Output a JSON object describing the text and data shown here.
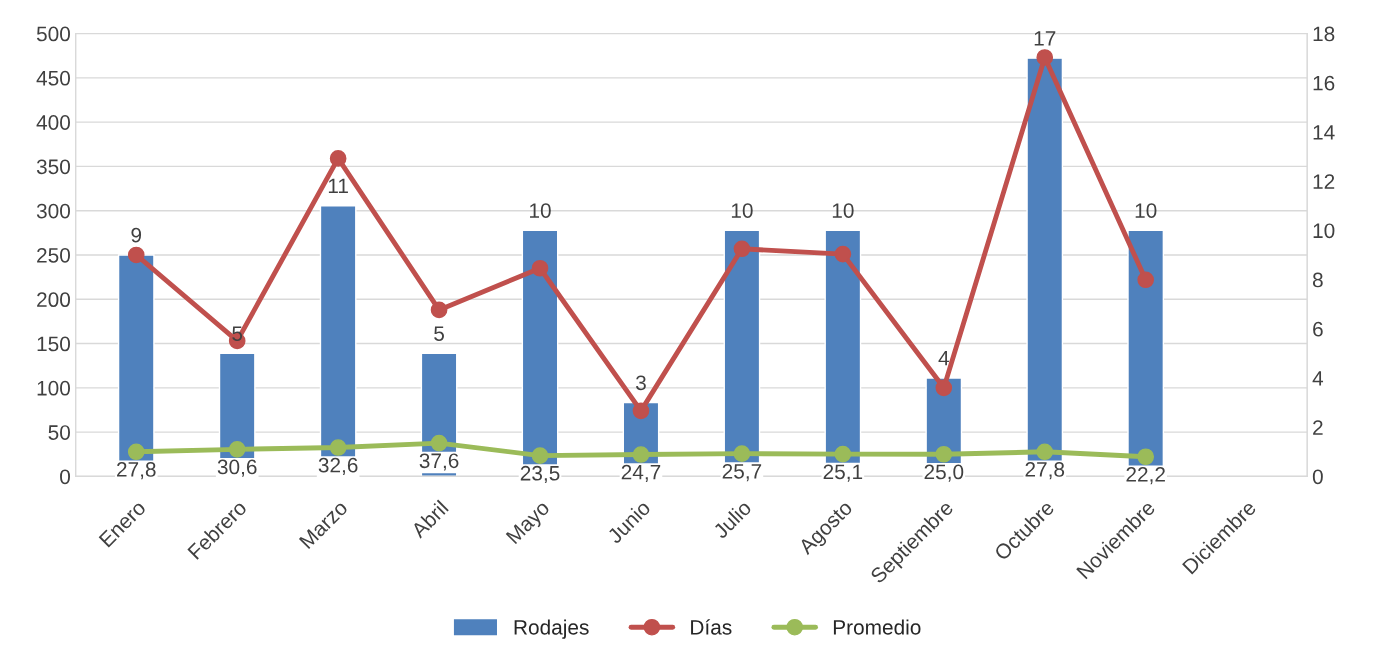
{
  "chart_data": {
    "type": "bar",
    "categories": [
      "Enero",
      "Febrero",
      "Marzo",
      "Abril",
      "Mayo",
      "Junio",
      "Julio",
      "Agosto",
      "Septiembre",
      "Octubre",
      "Noviembre",
      "Diciembre"
    ],
    "series": [
      {
        "name": "Rodajes",
        "axis": "y2",
        "color": "#4f81bd",
        "values": [
          9,
          5,
          11,
          5,
          10,
          3,
          10,
          10,
          4,
          17,
          10,
          null
        ],
        "value_labels": [
          "9",
          "5",
          "11",
          "5",
          "10",
          "3",
          "10",
          "10",
          "4",
          "17",
          "10",
          null
        ]
      },
      {
        "name": "Días",
        "type": "line",
        "color": "#c0504d",
        "values": [
          250,
          153,
          359,
          188,
          235,
          74,
          257,
          251,
          100,
          473,
          222,
          null
        ]
      },
      {
        "name": "Promedio",
        "type": "line",
        "color": "#9bbb59",
        "values": [
          27.8,
          30.6,
          32.6,
          37.6,
          23.5,
          24.7,
          25.7,
          25.1,
          25.0,
          27.8,
          22.2,
          null
        ],
        "value_labels": [
          "27,8",
          "30,6",
          "32,6",
          "37,6",
          "23,5",
          "24,7",
          "25,7",
          "25,1",
          "25,0",
          "27,8",
          "22,2",
          null
        ]
      }
    ],
    "ylim": [
      0,
      500
    ],
    "yticks": [
      0,
      50,
      100,
      150,
      200,
      250,
      300,
      350,
      400,
      450,
      500
    ],
    "y2lim": [
      0,
      18
    ],
    "y2ticks": [
      0,
      2,
      4,
      6,
      8,
      10,
      12,
      14,
      16,
      18
    ],
    "grid": "y",
    "legend": "bottom",
    "marker": "circle"
  }
}
